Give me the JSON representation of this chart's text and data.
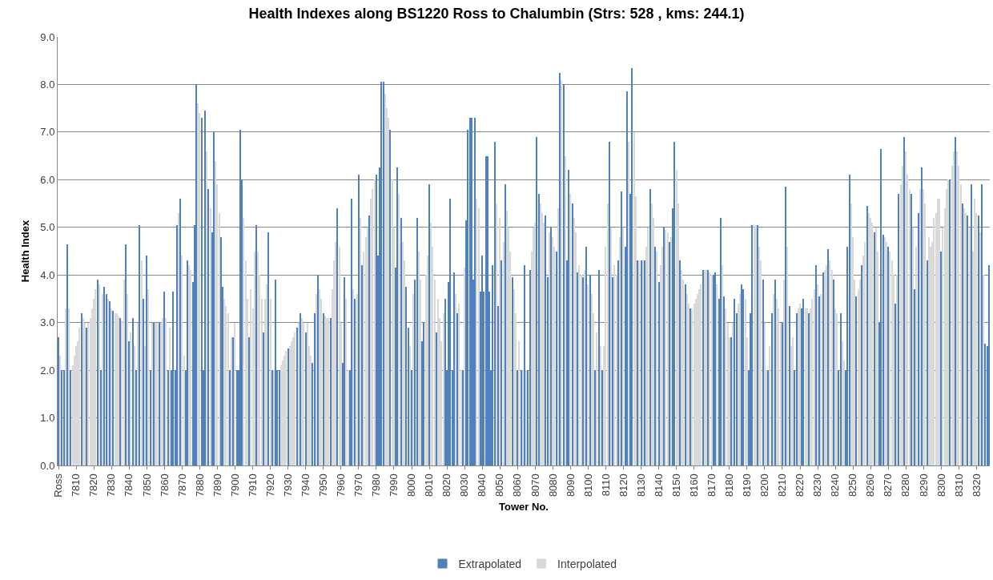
{
  "chart_data": {
    "type": "bar",
    "title": "Health Indexes along BS1220 Ross to Chalumbin (Strs: 528 , kms: 244.1)",
    "xlabel": "Tower No.",
    "ylabel": "Health Index",
    "categories": [
      "Ross",
      null,
      null,
      null,
      null,
      null,
      null,
      null,
      null,
      null,
      "7810",
      null,
      null,
      null,
      null,
      null,
      null,
      null,
      null,
      null,
      "7820",
      null,
      null,
      null,
      null,
      null,
      null,
      null,
      null,
      null,
      "7830",
      null,
      null,
      null,
      null,
      null,
      null,
      null,
      null,
      null,
      "7840",
      null,
      null,
      null,
      null,
      null,
      null,
      null,
      null,
      null,
      "7850",
      null,
      null,
      null,
      null,
      null,
      null,
      null,
      null,
      null,
      "7860",
      null,
      null,
      null,
      null,
      null,
      null,
      null,
      null,
      null,
      "7870",
      null,
      null,
      null,
      null,
      null,
      null,
      null,
      null,
      null,
      "7880",
      null,
      null,
      null,
      null,
      null,
      null,
      null,
      null,
      null,
      "7890",
      null,
      null,
      null,
      null,
      null,
      null,
      null,
      null,
      null,
      "7900",
      null,
      null,
      null,
      null,
      null,
      null,
      null,
      null,
      null,
      "7910",
      null,
      null,
      null,
      null,
      null,
      null,
      null,
      null,
      null,
      "7920",
      null,
      null,
      null,
      null,
      null,
      null,
      null,
      null,
      null,
      "7930",
      null,
      null,
      null,
      null,
      null,
      null,
      null,
      null,
      null,
      "7940",
      null,
      null,
      null,
      null,
      null,
      null,
      null,
      null,
      null,
      "7950",
      null,
      null,
      null,
      null,
      null,
      null,
      null,
      null,
      null,
      "7960",
      null,
      null,
      null,
      null,
      null,
      null,
      null,
      null,
      null,
      "7970",
      null,
      null,
      null,
      null,
      null,
      null,
      null,
      null,
      null,
      "7980",
      null,
      null,
      null,
      null,
      null,
      null,
      null,
      null,
      null,
      "7990",
      null,
      null,
      null,
      null,
      null,
      null,
      null,
      null,
      null,
      "8000",
      null,
      null,
      null,
      null,
      null,
      null,
      null,
      null,
      null,
      "8010",
      null,
      null,
      null,
      null,
      null,
      null,
      null,
      null,
      null,
      "8020",
      null,
      null,
      null,
      null,
      null,
      null,
      null,
      null,
      null,
      "8030",
      null,
      null,
      null,
      null,
      null,
      null,
      null,
      null,
      null,
      "8040",
      null,
      null,
      null,
      null,
      null,
      null,
      null,
      null,
      null,
      "8050",
      null,
      null,
      null,
      null,
      null,
      null,
      null,
      null,
      null,
      "8060",
      null,
      null,
      null,
      null,
      null,
      null,
      null,
      null,
      null,
      "8070",
      null,
      null,
      null,
      null,
      null,
      null,
      null,
      null,
      null,
      "8080",
      null,
      null,
      null,
      null,
      null,
      null,
      null,
      null,
      null,
      "8090",
      null,
      null,
      null,
      null,
      null,
      null,
      null,
      null,
      null,
      "8100",
      null,
      null,
      null,
      null,
      null,
      null,
      null,
      null,
      null,
      "8110",
      null,
      null,
      null,
      null,
      null,
      null,
      null,
      null,
      null,
      "8120",
      null,
      null,
      null,
      null,
      null,
      null,
      null,
      null,
      null,
      "8130",
      null,
      null,
      null,
      null,
      null,
      null,
      null,
      null,
      null,
      "8140",
      null,
      null,
      null,
      null,
      null,
      null,
      null,
      null,
      null,
      "8150",
      null,
      null,
      null,
      null,
      null,
      null,
      null,
      null,
      null,
      "8160",
      null,
      null,
      null,
      null,
      null,
      null,
      null,
      null,
      null,
      "8170",
      null,
      null,
      null,
      null,
      null,
      null,
      null,
      null,
      null,
      "8180",
      null,
      null,
      null,
      null,
      null,
      null,
      null,
      null,
      null,
      "8190",
      null,
      null,
      null,
      null,
      null,
      null,
      null,
      null,
      null,
      "8200",
      null,
      null,
      null,
      null,
      null,
      null,
      null,
      null,
      null,
      "8210",
      null,
      null,
      null,
      null,
      null,
      null,
      null,
      null,
      null,
      "8220",
      null,
      null,
      null,
      null,
      null,
      null,
      null,
      null,
      null,
      "8230",
      null,
      null,
      null,
      null,
      null,
      null,
      null,
      null,
      null,
      "8240",
      null,
      null,
      null,
      null,
      null,
      null,
      null,
      null,
      null,
      "8250",
      null,
      null,
      null,
      null,
      null,
      null,
      null,
      null,
      null,
      "8260",
      null,
      null,
      null,
      null,
      null,
      null,
      null,
      null,
      null,
      "8270",
      null,
      null,
      null,
      null,
      null,
      null,
      null,
      null,
      null,
      "8280",
      null,
      null,
      null,
      null,
      null,
      null,
      null,
      null,
      null,
      "8290",
      null,
      null,
      null,
      null,
      null,
      null,
      null,
      null,
      null,
      "8300",
      null,
      null,
      null,
      null,
      null,
      null,
      null,
      null,
      null,
      "8310",
      null,
      null,
      null,
      null,
      null,
      null,
      null,
      null,
      null,
      "8320",
      null,
      null,
      null,
      null,
      null,
      null,
      null
    ],
    "series": [
      {
        "name": "Extrapolated",
        "color": "#4f81bd",
        "values": [
          2.7,
          null,
          2.0,
          2.0,
          null,
          4.65,
          null,
          2.0,
          null,
          null,
          null,
          null,
          null,
          3.2,
          null,
          null,
          2.9,
          null,
          null,
          null,
          null,
          null,
          3.9,
          null,
          2.0,
          null,
          3.75,
          3.6,
          null,
          3.45,
          null,
          3.25,
          null,
          null,
          null,
          3.1,
          null,
          null,
          4.65,
          null,
          2.6,
          null,
          3.1,
          null,
          2.0,
          null,
          5.05,
          null,
          3.5,
          null,
          4.4,
          null,
          2.0,
          null,
          3.0,
          null,
          null,
          3.0,
          null,
          null,
          3.65,
          null,
          2.0,
          null,
          2.0,
          3.65,
          2.0,
          5.05,
          null,
          5.6,
          null,
          null,
          2.0,
          4.3,
          null,
          null,
          3.85,
          5.05,
          8.0,
          null,
          null,
          7.3,
          2.0,
          7.45,
          null,
          5.8,
          null,
          4.9,
          7.0,
          null,
          null,
          null,
          4.8,
          3.75,
          null,
          null,
          null,
          2.0,
          null,
          2.7,
          null,
          2.0,
          2.0,
          7.05,
          6.0,
          null,
          null,
          null,
          2.7,
          null,
          null,
          null,
          5.05,
          null,
          null,
          null,
          2.8,
          null,
          null,
          4.9,
          null,
          2.0,
          null,
          3.9,
          2.0,
          2.0,
          null,
          null,
          null,
          null,
          2.45,
          null,
          null,
          null,
          null,
          2.9,
          null,
          3.2,
          null,
          null,
          2.8,
          null,
          null,
          null,
          2.15,
          3.2,
          null,
          4.0,
          null,
          null,
          3.2,
          null,
          null,
          null,
          3.1,
          null,
          null,
          null,
          5.4,
          null,
          null,
          2.15,
          3.95,
          null,
          null,
          2.0,
          5.6,
          null,
          3.5,
          null,
          6.1,
          null,
          4.2,
          null,
          null,
          null,
          5.25,
          null,
          null,
          null,
          6.1,
          4.4,
          6.25,
          8.05,
          8.05,
          null,
          null,
          null,
          7.05,
          null,
          null,
          4.15,
          6.25,
          null,
          5.2,
          null,
          null,
          3.75,
          2.9,
          null,
          2.0,
          null,
          3.9,
          5.2,
          null,
          null,
          2.6,
          3.0,
          null,
          null,
          5.9,
          null,
          null,
          null,
          2.8,
          null,
          null,
          null,
          null,
          3.5,
          2.0,
          3.85,
          5.6,
          2.0,
          4.05,
          null,
          3.2,
          null,
          null,
          2.0,
          null,
          5.15,
          7.05,
          7.3,
          7.3,
          3.9,
          7.3,
          null,
          null,
          3.65,
          4.4,
          3.65,
          6.5,
          6.5,
          3.65,
          2.0,
          4.2,
          6.8,
          null,
          3.35,
          null,
          4.3,
          null,
          5.9,
          null,
          null,
          null,
          3.95,
          null,
          null,
          2.0,
          null,
          2.0,
          null,
          4.2,
          null,
          2.0,
          4.1,
          null,
          null,
          null,
          6.9,
          5.7,
          null,
          null,
          null,
          5.25,
          3.95,
          null,
          5.0,
          null,
          null,
          4.5,
          null,
          8.25,
          null,
          8.0,
          null,
          4.3,
          6.2,
          null,
          5.5,
          null,
          null,
          4.05,
          null,
          null,
          3.95,
          null,
          4.6,
          null,
          4.0,
          null,
          null,
          2.0,
          null,
          4.1,
          null,
          2.0,
          null,
          null,
          null,
          6.8,
          null,
          3.95,
          null,
          null,
          4.3,
          null,
          5.75,
          null,
          4.6,
          7.85,
          null,
          5.7,
          8.35,
          null,
          null,
          4.3,
          null,
          4.3,
          null,
          4.3,
          null,
          null,
          5.8,
          null,
          null,
          4.6,
          null,
          3.85,
          null,
          null,
          5.0,
          null,
          null,
          4.7,
          null,
          5.4,
          6.8,
          null,
          null,
          4.3,
          null,
          null,
          3.8,
          null,
          null,
          3.3,
          null,
          null,
          null,
          null,
          null,
          null,
          4.1,
          null,
          null,
          4.1,
          null,
          null,
          4.0,
          4.05,
          null,
          3.5,
          5.2,
          null,
          3.55,
          null,
          null,
          null,
          2.7,
          null,
          3.5,
          3.2,
          null,
          null,
          3.8,
          3.7,
          null,
          null,
          2.0,
          3.2,
          5.05,
          null,
          null,
          5.05,
          null,
          null,
          3.9,
          null,
          null,
          2.0,
          null,
          3.2,
          null,
          3.9,
          null,
          null,
          null,
          3.0,
          null,
          5.85,
          null,
          3.35,
          null,
          null,
          2.0,
          3.2,
          null,
          null,
          3.3,
          3.5,
          null,
          null,
          3.2,
          null,
          null,
          null,
          4.2,
          null,
          3.55,
          null,
          4.05,
          null,
          null,
          4.55,
          null,
          null,
          3.9,
          null,
          null,
          2.0,
          3.2,
          null,
          null,
          2.0,
          4.6,
          6.1,
          null,
          null,
          null,
          3.55,
          null,
          null,
          4.2,
          null,
          null,
          5.45,
          null,
          null,
          null,
          4.9,
          null,
          null,
          3.0,
          6.65,
          4.85,
          null,
          null,
          4.6,
          null,
          null,
          null,
          3.4,
          null,
          5.7,
          null,
          null,
          6.9,
          null,
          null,
          null,
          5.7,
          null,
          3.7,
          null,
          5.3,
          null,
          6.25,
          null,
          null,
          4.3,
          null,
          null,
          null,
          null,
          null,
          null,
          null,
          4.5,
          null,
          null,
          null,
          null,
          6.0,
          null,
          null,
          6.9,
          null,
          null,
          null,
          5.5,
          null,
          null,
          5.25,
          null,
          5.9,
          null,
          null,
          null,
          5.25,
          null,
          5.9,
          null,
          2.55,
          2.5,
          4.2
        ]
      },
      {
        "name": "Interpolated",
        "color": "#d9d9d9",
        "values": [
          null,
          2.3,
          null,
          null,
          3.3,
          null,
          3.3,
          null,
          2.1,
          2.3,
          2.5,
          2.6,
          2.9,
          null,
          3.1,
          3.0,
          null,
          3.0,
          3.1,
          3.3,
          3.5,
          3.7,
          null,
          3.8,
          null,
          3.6,
          null,
          null,
          3.5,
          null,
          3.3,
          null,
          3.2,
          3.2,
          3.15,
          null,
          3.05,
          3.9,
          null,
          3.6,
          null,
          2.8,
          null,
          2.5,
          null,
          3.0,
          null,
          4.3,
          null,
          2.5,
          null,
          3.7,
          null,
          3.0,
          null,
          3.0,
          3.0,
          null,
          3.0,
          3.1,
          null,
          3.1,
          null,
          2.9,
          null,
          null,
          null,
          null,
          5.3,
          null,
          4.4,
          2.3,
          null,
          null,
          4.2,
          4.1,
          null,
          null,
          null,
          7.6,
          7.4,
          null,
          null,
          null,
          6.6,
          null,
          5.4,
          null,
          null,
          6.4,
          5.9,
          5.3,
          null,
          null,
          3.5,
          3.35,
          3.2,
          null,
          2.7,
          null,
          3.0,
          null,
          null,
          null,
          null,
          5.2,
          4.3,
          3.5,
          null,
          3.7,
          3.3,
          4.5,
          null,
          4.5,
          4.0,
          3.5,
          null,
          3.5,
          3.8,
          null,
          3.5,
          null,
          2.0,
          null,
          null,
          null,
          2.1,
          2.2,
          2.3,
          2.4,
          null,
          2.5,
          2.6,
          2.7,
          2.8,
          null,
          3.0,
          null,
          3.1,
          3.0,
          null,
          3.0,
          2.5,
          2.3,
          null,
          null,
          3.6,
          null,
          3.7,
          3.5,
          null,
          3.15,
          3.1,
          3.1,
          null,
          3.7,
          4.3,
          4.7,
          null,
          4.6,
          3.0,
          null,
          null,
          3.5,
          2.0,
          null,
          null,
          3.7,
          null,
          3.6,
          null,
          5.2,
          null,
          4.5,
          4.8,
          5.0,
          null,
          5.6,
          5.8,
          6.0,
          null,
          null,
          null,
          null,
          null,
          7.8,
          7.5,
          7.3,
          null,
          6.0,
          5.0,
          null,
          null,
          5.7,
          null,
          4.7,
          4.3,
          null,
          null,
          2.5,
          null,
          3.6,
          null,
          null,
          4.5,
          3.9,
          null,
          null,
          4.0,
          4.4,
          null,
          5.1,
          4.6,
          3.9,
          null,
          3.5,
          3.1,
          2.6,
          3.2,
          null,
          null,
          null,
          null,
          null,
          null,
          3.6,
          null,
          3.4,
          2.0,
          null,
          4.15,
          null,
          null,
          null,
          null,
          null,
          null,
          5.6,
          5.4,
          null,
          null,
          null,
          null,
          null,
          null,
          null,
          null,
          null,
          5.5,
          null,
          5.2,
          null,
          4.7,
          null,
          5.35,
          5.0,
          4.5,
          null,
          3.7,
          3.2,
          null,
          2.6,
          null,
          2.0,
          null,
          2.0,
          null,
          null,
          4.5,
          5.0,
          5.1,
          null,
          null,
          5.5,
          5.3,
          5.1,
          null,
          null,
          4.9,
          null,
          4.8,
          4.6,
          null,
          5.4,
          null,
          8.1,
          null,
          6.5,
          null,
          null,
          5.7,
          null,
          5.2,
          4.9,
          null,
          4.2,
          4.0,
          null,
          4.1,
          null,
          3.8,
          null,
          3.6,
          3.2,
          null,
          2.8,
          null,
          2.5,
          null,
          2.5,
          4.6,
          5.5,
          null,
          5.0,
          null,
          4.2,
          4.0,
          null,
          4.8,
          null,
          5.0,
          null,
          null,
          6.8,
          null,
          null,
          7.0,
          5.65,
          null,
          4.3,
          null,
          4.3,
          null,
          4.6,
          5.0,
          null,
          5.5,
          5.2,
          null,
          4.5,
          null,
          4.2,
          4.6,
          null,
          4.95,
          4.9,
          null,
          4.8,
          null,
          null,
          6.2,
          5.5,
          null,
          4.1,
          3.9,
          null,
          3.6,
          3.4,
          null,
          3.3,
          3.4,
          3.5,
          3.6,
          3.7,
          3.8,
          null,
          4.1,
          4.1,
          null,
          4.05,
          4.0,
          null,
          null,
          3.8,
          null,
          null,
          4.2,
          null,
          3.3,
          3.0,
          2.7,
          null,
          3.0,
          null,
          null,
          3.4,
          3.6,
          null,
          null,
          3.5,
          2.7,
          null,
          null,
          null,
          5.05,
          5.05,
          null,
          4.6,
          4.3,
          null,
          3.0,
          2.0,
          null,
          2.5,
          null,
          3.6,
          null,
          3.5,
          3.3,
          3.0,
          null,
          3.9,
          null,
          4.6,
          null,
          2.5,
          2.7,
          null,
          null,
          3.3,
          3.4,
          null,
          null,
          3.3,
          3.3,
          null,
          3.3,
          3.5,
          3.7,
          null,
          3.8,
          null,
          3.6,
          null,
          4.1,
          4.2,
          null,
          4.3,
          4.1,
          null,
          3.3,
          3.2,
          null,
          null,
          2.6,
          2.2,
          null,
          null,
          null,
          5.5,
          4.8,
          3.9,
          null,
          3.7,
          3.9,
          null,
          4.4,
          4.7,
          null,
          5.3,
          5.2,
          5.1,
          null,
          5.0,
          4.5,
          null,
          null,
          null,
          4.8,
          4.7,
          null,
          4.5,
          4.3,
          4.0,
          null,
          4.0,
          null,
          5.9,
          6.3,
          null,
          6.6,
          6.1,
          5.8,
          null,
          5.0,
          null,
          4.6,
          null,
          5.8,
          null,
          5.8,
          5.5,
          null,
          4.8,
          4.6,
          4.7,
          5.2,
          5.3,
          5.6,
          5.6,
          null,
          5.0,
          5.4,
          5.8,
          6.0,
          null,
          6.3,
          6.6,
          null,
          6.6,
          6.3,
          5.9,
          null,
          5.4,
          5.3,
          null,
          5.0,
          null,
          4.5,
          5.6,
          5.3,
          null,
          4.9,
          null,
          4.0,
          null,
          null,
          null
        ]
      }
    ],
    "ylim": [
      0,
      9
    ],
    "yticks": [
      {
        "value": 0,
        "label": "0.0"
      },
      {
        "value": 1,
        "label": "1.0"
      },
      {
        "value": 2,
        "label": "2.0"
      },
      {
        "value": 3,
        "label": "3.0"
      },
      {
        "value": 4,
        "label": "4.0"
      },
      {
        "value": 5,
        "label": "5.0"
      },
      {
        "value": 6,
        "label": "6.0"
      },
      {
        "value": 7,
        "label": "7.0"
      },
      {
        "value": 8,
        "label": "8.0"
      },
      {
        "value": 9,
        "label": "9.0"
      }
    ],
    "grid": "y",
    "legend": "bottom"
  }
}
